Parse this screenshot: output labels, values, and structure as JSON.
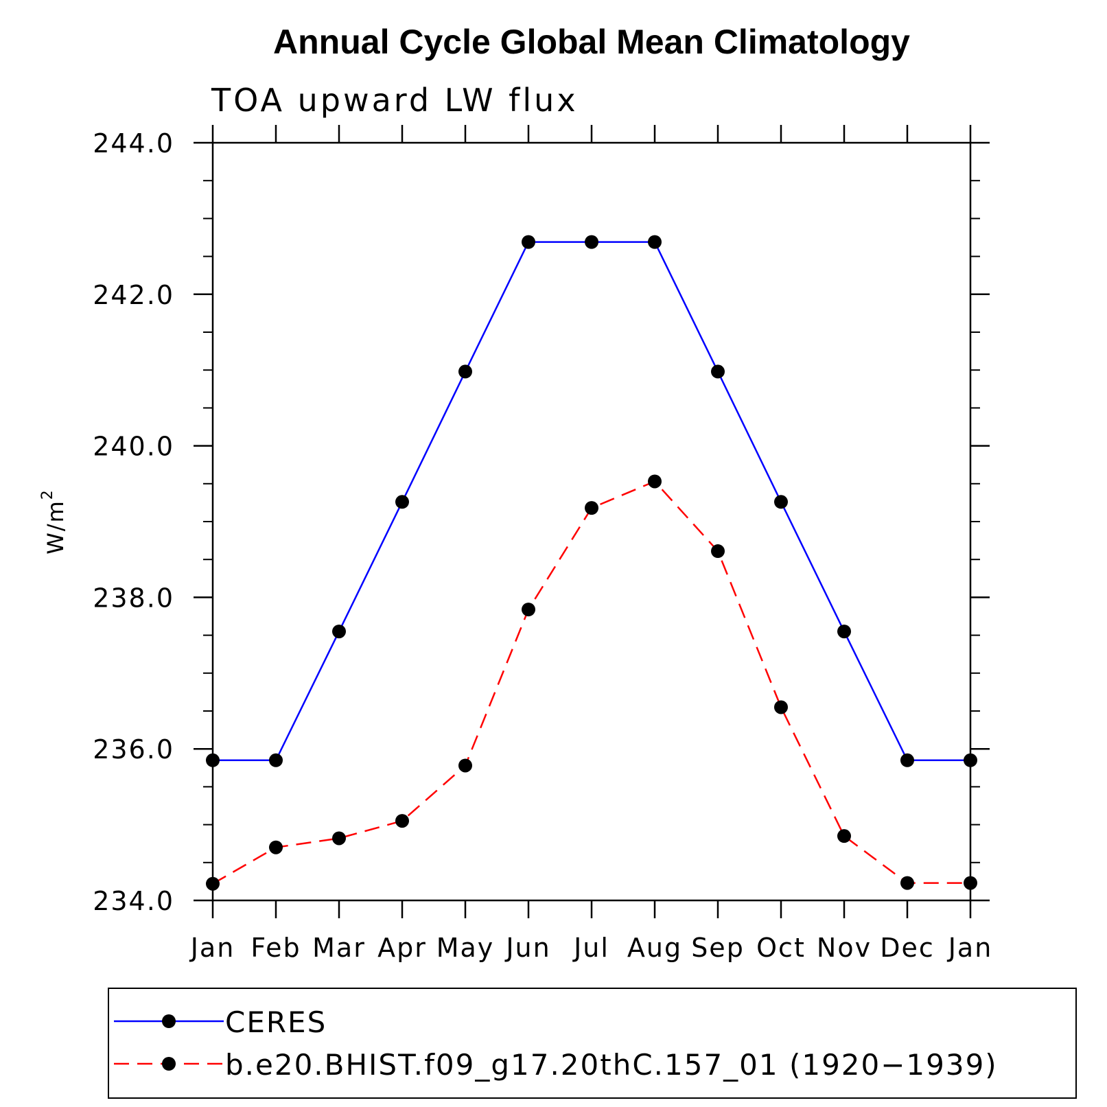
{
  "chart_data": {
    "type": "line",
    "title": "Annual Cycle Global Mean Climatology",
    "subtitle": "TOA upward LW flux",
    "ylabel": "W/m",
    "ylabel_superscript": "2",
    "categories": [
      "Jan",
      "Feb",
      "Mar",
      "Apr",
      "May",
      "Jun",
      "Jul",
      "Aug",
      "Sep",
      "Oct",
      "Nov",
      "Dec",
      "Jan"
    ],
    "ylim": [
      234.0,
      244.0
    ],
    "yticks": [
      "234.0",
      "236.0",
      "238.0",
      "240.0",
      "242.0",
      "244.0"
    ],
    "grid": false,
    "legend_position": "bottom",
    "series": [
      {
        "name": "CERES",
        "color": "#0000ff",
        "line_style": "solid",
        "marker": "filled-circle",
        "values": [
          235.85,
          235.85,
          237.55,
          239.26,
          240.98,
          242.69,
          242.69,
          242.69,
          240.98,
          239.26,
          237.55,
          235.85,
          235.85
        ]
      },
      {
        "name": "b.e20.BHIST.f09_g17.20thC.157_01 (1920−1939)",
        "color": "#ff0000",
        "line_style": "dashed",
        "marker": "filled-circle",
        "values": [
          234.22,
          234.7,
          234.82,
          235.05,
          235.78,
          237.84,
          239.18,
          239.53,
          238.61,
          236.55,
          234.85,
          234.23,
          234.23
        ]
      }
    ]
  }
}
